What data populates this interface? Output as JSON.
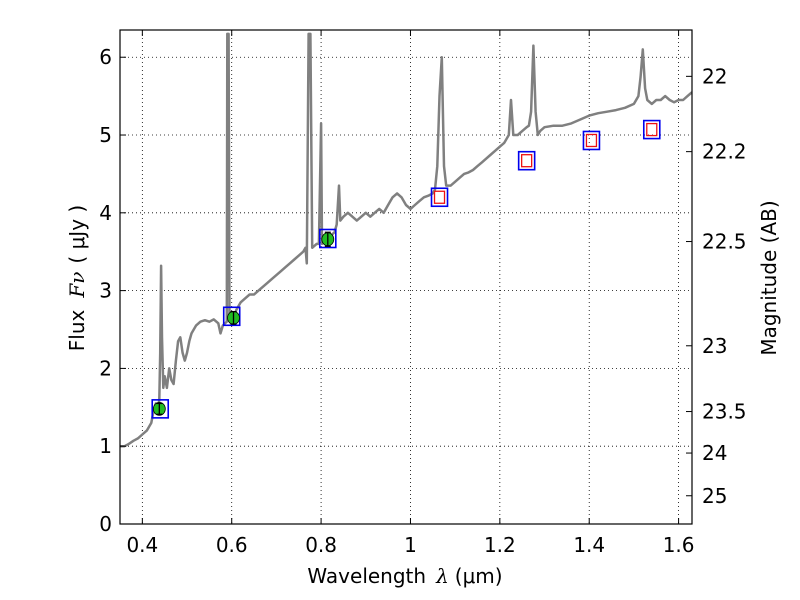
{
  "chart_data": {
    "type": "line",
    "xlabel_text": "Wavelength",
    "xlabel_symbol": "λ",
    "xlabel_units": "(μm)",
    "ylabel_text": "Flux",
    "ylabel_symbol": "Fν",
    "ylabel_units": "( μJy )",
    "y2label": "Magnitude (AB)",
    "xlim": [
      0.35,
      1.63
    ],
    "ylim": [
      0,
      6.35
    ],
    "grid": true,
    "xticks": [
      {
        "value": 0.4,
        "label": "0.4"
      },
      {
        "value": 0.6,
        "label": "0.6"
      },
      {
        "value": 0.8,
        "label": "0.8"
      },
      {
        "value": 1.0,
        "label": "1"
      },
      {
        "value": 1.2,
        "label": "1.2"
      },
      {
        "value": 1.4,
        "label": "1.4"
      },
      {
        "value": 1.6,
        "label": "1.6"
      }
    ],
    "yticks": [
      {
        "value": 0,
        "label": "0"
      },
      {
        "value": 1,
        "label": "1"
      },
      {
        "value": 2,
        "label": "2"
      },
      {
        "value": 3,
        "label": "3"
      },
      {
        "value": 4,
        "label": "4"
      },
      {
        "value": 5,
        "label": "5"
      },
      {
        "value": 6,
        "label": "6"
      }
    ],
    "y2ticks": [
      {
        "value": 22,
        "label": "22"
      },
      {
        "value": 22.2,
        "label": "22.2"
      },
      {
        "value": 22.5,
        "label": "22.5"
      },
      {
        "value": 23,
        "label": "23"
      },
      {
        "value": 23.5,
        "label": "23.5"
      },
      {
        "value": 24,
        "label": "24"
      },
      {
        "value": 25,
        "label": "25"
      }
    ],
    "colors": {
      "spectrum": "#808080",
      "detection_fill": "#22bb22",
      "model_box": "#0000ee",
      "nir_marker": "#ee1111"
    },
    "spectrum": [
      [
        0.35,
        1.0
      ],
      [
        0.36,
        1.0
      ],
      [
        0.37,
        1.03
      ],
      [
        0.38,
        1.07
      ],
      [
        0.39,
        1.1
      ],
      [
        0.4,
        1.15
      ],
      [
        0.41,
        1.2
      ],
      [
        0.42,
        1.3
      ],
      [
        0.425,
        1.45
      ],
      [
        0.43,
        1.55
      ],
      [
        0.435,
        1.48
      ],
      [
        0.438,
        1.6
      ],
      [
        0.44,
        2.2
      ],
      [
        0.442,
        3.32
      ],
      [
        0.444,
        2.4
      ],
      [
        0.447,
        1.75
      ],
      [
        0.45,
        1.9
      ],
      [
        0.455,
        1.75
      ],
      [
        0.46,
        2.0
      ],
      [
        0.465,
        1.85
      ],
      [
        0.47,
        1.8
      ],
      [
        0.475,
        2.1
      ],
      [
        0.48,
        2.35
      ],
      [
        0.485,
        2.4
      ],
      [
        0.49,
        2.2
      ],
      [
        0.495,
        2.1
      ],
      [
        0.5,
        2.2
      ],
      [
        0.505,
        2.35
      ],
      [
        0.51,
        2.45
      ],
      [
        0.52,
        2.55
      ],
      [
        0.53,
        2.6
      ],
      [
        0.54,
        2.62
      ],
      [
        0.55,
        2.6
      ],
      [
        0.56,
        2.63
      ],
      [
        0.57,
        2.58
      ],
      [
        0.575,
        2.45
      ],
      [
        0.58,
        2.55
      ],
      [
        0.585,
        2.58
      ],
      [
        0.589,
        2.6
      ],
      [
        0.59,
        6.3
      ],
      [
        0.593,
        6.3
      ],
      [
        0.595,
        2.62
      ],
      [
        0.6,
        2.6
      ],
      [
        0.605,
        2.62
      ],
      [
        0.61,
        2.75
      ],
      [
        0.62,
        2.85
      ],
      [
        0.63,
        2.9
      ],
      [
        0.64,
        2.95
      ],
      [
        0.65,
        2.95
      ],
      [
        0.66,
        3.0
      ],
      [
        0.67,
        3.05
      ],
      [
        0.68,
        3.1
      ],
      [
        0.69,
        3.15
      ],
      [
        0.7,
        3.2
      ],
      [
        0.71,
        3.25
      ],
      [
        0.72,
        3.3
      ],
      [
        0.73,
        3.35
      ],
      [
        0.74,
        3.4
      ],
      [
        0.75,
        3.45
      ],
      [
        0.76,
        3.5
      ],
      [
        0.765,
        3.55
      ],
      [
        0.768,
        3.35
      ],
      [
        0.772,
        6.3
      ],
      [
        0.776,
        6.3
      ],
      [
        0.78,
        3.55
      ],
      [
        0.79,
        3.6
      ],
      [
        0.795,
        3.6
      ],
      [
        0.8,
        5.15
      ],
      [
        0.802,
        3.6
      ],
      [
        0.81,
        3.65
      ],
      [
        0.82,
        3.7
      ],
      [
        0.83,
        3.75
      ],
      [
        0.835,
        3.85
      ],
      [
        0.84,
        4.35
      ],
      [
        0.843,
        3.9
      ],
      [
        0.85,
        3.95
      ],
      [
        0.86,
        4.0
      ],
      [
        0.87,
        3.95
      ],
      [
        0.88,
        3.9
      ],
      [
        0.89,
        3.95
      ],
      [
        0.9,
        4.0
      ],
      [
        0.91,
        3.95
      ],
      [
        0.92,
        4.0
      ],
      [
        0.93,
        4.05
      ],
      [
        0.94,
        4.0
      ],
      [
        0.95,
        4.1
      ],
      [
        0.96,
        4.2
      ],
      [
        0.97,
        4.25
      ],
      [
        0.98,
        4.2
      ],
      [
        0.99,
        4.1
      ],
      [
        1.0,
        4.05
      ],
      [
        1.01,
        4.1
      ],
      [
        1.02,
        4.15
      ],
      [
        1.03,
        4.2
      ],
      [
        1.04,
        4.22
      ],
      [
        1.05,
        4.25
      ],
      [
        1.055,
        4.3
      ],
      [
        1.06,
        4.6
      ],
      [
        1.065,
        5.5
      ],
      [
        1.07,
        6.0
      ],
      [
        1.075,
        4.6
      ],
      [
        1.08,
        4.35
      ],
      [
        1.09,
        4.35
      ],
      [
        1.1,
        4.4
      ],
      [
        1.11,
        4.45
      ],
      [
        1.12,
        4.5
      ],
      [
        1.13,
        4.52
      ],
      [
        1.14,
        4.55
      ],
      [
        1.15,
        4.6
      ],
      [
        1.16,
        4.65
      ],
      [
        1.17,
        4.7
      ],
      [
        1.18,
        4.75
      ],
      [
        1.19,
        4.8
      ],
      [
        1.2,
        4.85
      ],
      [
        1.21,
        4.9
      ],
      [
        1.22,
        5.0
      ],
      [
        1.225,
        5.45
      ],
      [
        1.23,
        5.0
      ],
      [
        1.24,
        5.0
      ],
      [
        1.25,
        5.05
      ],
      [
        1.26,
        5.1
      ],
      [
        1.265,
        5.12
      ],
      [
        1.27,
        5.3
      ],
      [
        1.275,
        6.15
      ],
      [
        1.28,
        5.3
      ],
      [
        1.285,
        5.0
      ],
      [
        1.29,
        5.05
      ],
      [
        1.3,
        5.1
      ],
      [
        1.32,
        5.12
      ],
      [
        1.34,
        5.12
      ],
      [
        1.36,
        5.15
      ],
      [
        1.38,
        5.2
      ],
      [
        1.4,
        5.25
      ],
      [
        1.42,
        5.28
      ],
      [
        1.44,
        5.3
      ],
      [
        1.46,
        5.32
      ],
      [
        1.48,
        5.35
      ],
      [
        1.5,
        5.4
      ],
      [
        1.51,
        5.5
      ],
      [
        1.515,
        5.75
      ],
      [
        1.52,
        6.1
      ],
      [
        1.525,
        5.6
      ],
      [
        1.53,
        5.45
      ],
      [
        1.54,
        5.4
      ],
      [
        1.55,
        5.45
      ],
      [
        1.56,
        5.45
      ],
      [
        1.57,
        5.5
      ],
      [
        1.58,
        5.45
      ],
      [
        1.59,
        5.42
      ],
      [
        1.6,
        5.45
      ],
      [
        1.61,
        5.45
      ],
      [
        1.62,
        5.5
      ],
      [
        1.63,
        5.55
      ]
    ],
    "model_boxes": [
      {
        "x": 0.44,
        "y": 1.48
      },
      {
        "x": 0.6,
        "y": 2.67
      },
      {
        "x": 0.815,
        "y": 3.67
      },
      {
        "x": 1.065,
        "y": 4.2
      },
      {
        "x": 1.26,
        "y": 4.67
      },
      {
        "x": 1.405,
        "y": 4.93
      },
      {
        "x": 1.54,
        "y": 5.07
      }
    ],
    "detections": [
      {
        "x": 0.438,
        "y": 1.48,
        "err": 0.07
      },
      {
        "x": 0.604,
        "y": 2.65,
        "err": 0.08
      },
      {
        "x": 0.815,
        "y": 3.66,
        "err": 0.09
      }
    ],
    "nir_points": [
      {
        "x": 1.065,
        "y": 4.2
      },
      {
        "x": 1.26,
        "y": 4.67
      },
      {
        "x": 1.405,
        "y": 4.93
      },
      {
        "x": 1.54,
        "y": 5.07
      }
    ]
  }
}
